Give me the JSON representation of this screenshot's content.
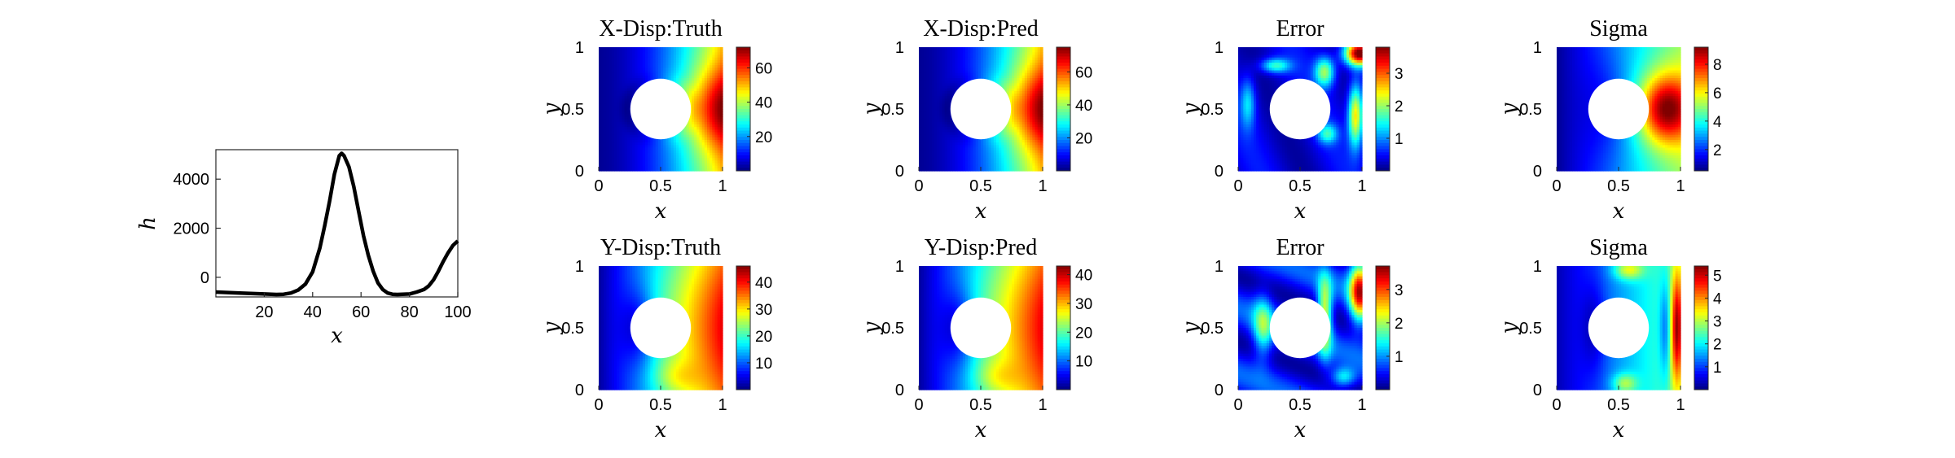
{
  "colors": {
    "colormap": "jet",
    "line": "#000000",
    "hole": "#ffffff"
  },
  "chart_data": [
    {
      "type": "line",
      "xlabel": "x",
      "ylabel": "h",
      "xlim": [
        0,
        100
      ],
      "ylim": [
        -800,
        5200
      ],
      "xticks": [
        "20",
        "40",
        "60",
        "80",
        "100"
      ],
      "yticks": [
        "0",
        "2000",
        "4000"
      ],
      "series": [
        {
          "x": [
            0,
            10,
            20,
            25,
            28,
            31,
            34,
            37,
            40,
            43,
            45,
            47,
            49,
            51,
            52,
            53,
            55,
            57,
            59,
            61,
            63,
            65,
            67,
            69,
            71,
            73,
            75,
            77,
            80,
            83,
            86,
            88,
            90,
            92,
            94,
            96,
            98,
            100
          ],
          "y": [
            -600,
            -640,
            -680,
            -700,
            -690,
            -640,
            -520,
            -280,
            220,
            1200,
            2100,
            3100,
            4200,
            4950,
            5050,
            4950,
            4500,
            3700,
            2700,
            1700,
            900,
            250,
            -230,
            -500,
            -640,
            -690,
            -700,
            -690,
            -680,
            -600,
            -500,
            -350,
            -100,
            250,
            650,
            1000,
            1300,
            1480
          ]
        }
      ]
    },
    {
      "type": "heatmap",
      "title": "X-Disp:Truth",
      "field": "ux",
      "xlabel": "x",
      "ylabel": "y",
      "xticks": [
        "0",
        "0.5",
        "1"
      ],
      "yticks": [
        "0",
        "0.5",
        "1"
      ],
      "clim": [
        0,
        72
      ],
      "colorbar_ticks": [
        20,
        40,
        60
      ]
    },
    {
      "type": "heatmap",
      "title": "X-Disp:Pred",
      "field": "ux",
      "xlabel": "x",
      "ylabel": "y",
      "xticks": [
        "0",
        "0.5",
        "1"
      ],
      "yticks": [
        "0",
        "0.5",
        "1"
      ],
      "clim": [
        0,
        75
      ],
      "colorbar_ticks": [
        20,
        40,
        60
      ]
    },
    {
      "type": "heatmap",
      "title": "Error",
      "field": "errx",
      "xlabel": "x",
      "ylabel": "y",
      "xticks": [
        "0",
        "0.5",
        "1"
      ],
      "yticks": [
        "0",
        "0.5",
        "1"
      ],
      "clim": [
        0,
        3.8
      ],
      "colorbar_ticks": [
        1,
        2,
        3
      ]
    },
    {
      "type": "heatmap",
      "title": "Sigma",
      "field": "sigx",
      "xlabel": "x",
      "ylabel": "y",
      "xticks": [
        "0",
        "0.5",
        "1"
      ],
      "yticks": [
        "0",
        "0.5",
        "1"
      ],
      "clim": [
        0.5,
        9.2
      ],
      "colorbar_ticks": [
        2,
        4,
        6,
        8
      ]
    },
    {
      "type": "heatmap",
      "title": "Y-Disp:Truth",
      "field": "uy",
      "xlabel": "x",
      "ylabel": "y",
      "xticks": [
        "0",
        "0.5",
        "1"
      ],
      "yticks": [
        "0",
        "0.5",
        "1"
      ],
      "clim": [
        0,
        46
      ],
      "colorbar_ticks": [
        10,
        20,
        30,
        40
      ]
    },
    {
      "type": "heatmap",
      "title": "Y-Disp:Pred",
      "field": "uy",
      "xlabel": "x",
      "ylabel": "y",
      "xticks": [
        "0",
        "0.5",
        "1"
      ],
      "yticks": [
        "0",
        "0.5",
        "1"
      ],
      "clim": [
        0,
        43
      ],
      "colorbar_ticks": [
        10,
        20,
        30,
        40
      ]
    },
    {
      "type": "heatmap",
      "title": "Error",
      "field": "erry",
      "xlabel": "x",
      "ylabel": "y",
      "xticks": [
        "0",
        "0.5",
        "1"
      ],
      "yticks": [
        "0",
        "0.5",
        "1"
      ],
      "clim": [
        0,
        3.7
      ],
      "colorbar_ticks": [
        1,
        2,
        3
      ]
    },
    {
      "type": "heatmap",
      "title": "Sigma",
      "field": "sigy",
      "xlabel": "x",
      "ylabel": "y",
      "xticks": [
        "0",
        "0.5",
        "1"
      ],
      "yticks": [
        "0",
        "0.5",
        "1"
      ],
      "clim": [
        0,
        5.4
      ],
      "colorbar_ticks": [
        1,
        2,
        3,
        4,
        5
      ]
    }
  ]
}
